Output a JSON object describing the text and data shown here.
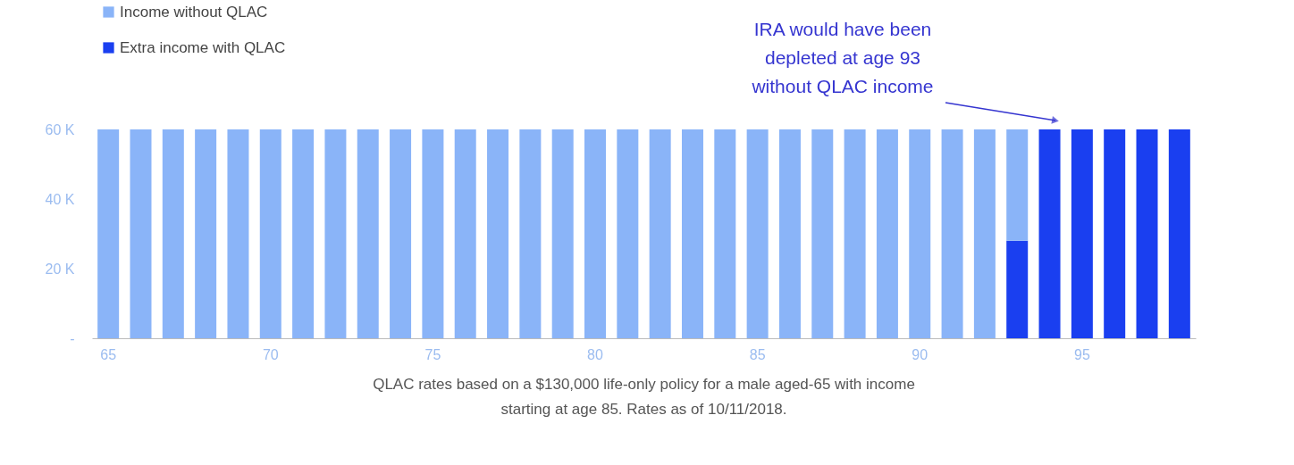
{
  "chart_data": {
    "type": "bar",
    "stacked": true,
    "categories": [
      "65",
      null,
      null,
      null,
      null,
      "70",
      null,
      null,
      null,
      null,
      "75",
      null,
      null,
      null,
      null,
      "80",
      null,
      null,
      null,
      null,
      "85",
      null,
      null,
      null,
      null,
      "90",
      null,
      null,
      null,
      null,
      "95",
      null,
      null,
      null
    ],
    "series": [
      {
        "name": "Extra income with QLAC",
        "color": "#1a3ff0",
        "values": [
          null,
          null,
          null,
          null,
          null,
          null,
          null,
          null,
          null,
          null,
          null,
          null,
          null,
          null,
          null,
          null,
          null,
          null,
          null,
          null,
          null,
          null,
          null,
          null,
          null,
          null,
          null,
          null,
          28000,
          60000,
          60000,
          60000,
          60000,
          60000
        ]
      },
      {
        "name": "Income without QLAC",
        "color": "#8ab4f8",
        "values": [
          60000,
          60000,
          60000,
          60000,
          60000,
          60000,
          60000,
          60000,
          60000,
          60000,
          60000,
          60000,
          60000,
          60000,
          60000,
          60000,
          60000,
          60000,
          60000,
          60000,
          60000,
          60000,
          60000,
          60000,
          60000,
          60000,
          60000,
          60000,
          32000,
          null,
          null,
          null,
          null,
          null
        ]
      }
    ],
    "ylim": [
      0,
      60000
    ],
    "yticks": [
      {
        "value": 0,
        "label": "-"
      },
      {
        "value": 20000,
        "label": "20 K"
      },
      {
        "value": 40000,
        "label": "40 K"
      },
      {
        "value": 60000,
        "label": "60 K"
      }
    ],
    "grid": false,
    "legend": "top left",
    "annotations": [
      "IRA would have been\ndepleted at age 93\nwithout QLAC income",
      "QLAC rates based on a $130,000 life-only policy for a male aged-65 with income\nstarting at age 85. Rates as of 10/11/2018."
    ]
  }
}
